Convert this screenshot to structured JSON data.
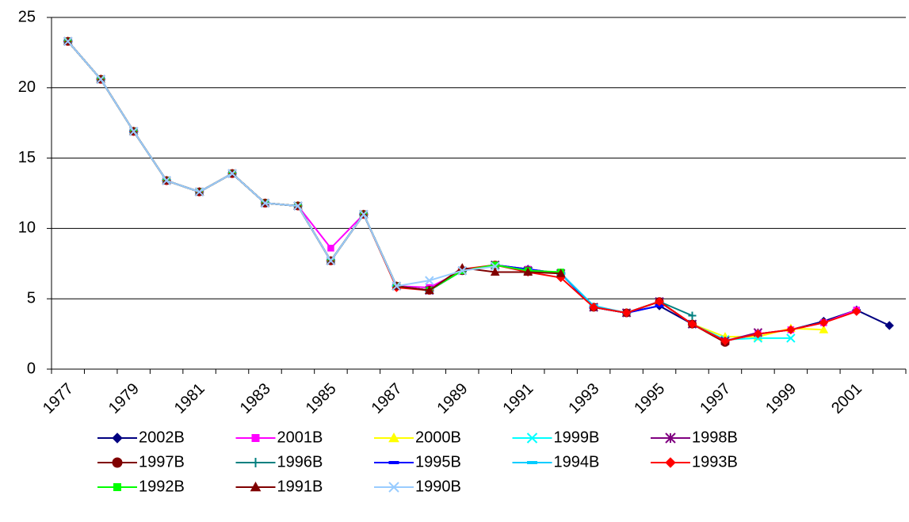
{
  "chart_data": {
    "type": "line",
    "categories": [
      "1977",
      null,
      "1979",
      null,
      "1981",
      null,
      "1983",
      null,
      "1985",
      null,
      "1987",
      null,
      "1989",
      null,
      "1991",
      null,
      "1993",
      null,
      "1995",
      null,
      "1997",
      null,
      "1999",
      null,
      "2001",
      null
    ],
    "ylim": [
      0,
      25
    ],
    "yticks": [
      0,
      5,
      10,
      15,
      20,
      25
    ],
    "grid": true,
    "series": [
      {
        "name": "2002B",
        "color": "#000080",
        "marker": "diamond",
        "values": [
          23.3,
          20.6,
          16.9,
          13.4,
          12.6,
          13.9,
          11.8,
          11.6,
          7.7,
          11.0,
          5.9,
          5.6,
          7.0,
          7.4,
          7.1,
          6.8,
          4.4,
          4.0,
          4.5,
          3.2,
          2.0,
          2.5,
          2.8,
          3.4,
          4.2,
          3.1
        ]
      },
      {
        "name": "2001B",
        "color": "#ff00ff",
        "marker": "square",
        "values": [
          23.3,
          20.6,
          16.9,
          13.4,
          12.6,
          13.9,
          11.8,
          11.6,
          8.6,
          11.0,
          5.9,
          5.8,
          7.0,
          7.4,
          7.1,
          6.8,
          4.4,
          4.0,
          4.8,
          3.2,
          2.0,
          2.5,
          2.8,
          3.3,
          4.2,
          null
        ]
      },
      {
        "name": "2000B",
        "color": "#ffff00",
        "marker": "triangle",
        "values": [
          23.3,
          20.6,
          16.9,
          13.4,
          12.6,
          13.9,
          11.8,
          11.6,
          7.7,
          11.0,
          5.9,
          5.6,
          7.0,
          7.4,
          7.0,
          6.8,
          4.4,
          4.0,
          4.8,
          3.2,
          2.3,
          2.3,
          2.9,
          2.8,
          null,
          null
        ]
      },
      {
        "name": "1999B",
        "color": "#00ffff",
        "marker": "x",
        "values": [
          23.3,
          20.6,
          16.9,
          13.4,
          12.6,
          13.9,
          11.8,
          11.6,
          7.7,
          11.0,
          5.9,
          5.6,
          7.0,
          7.4,
          7.0,
          6.8,
          4.4,
          4.0,
          4.8,
          3.2,
          2.1,
          2.2,
          2.2,
          null,
          null,
          null
        ]
      },
      {
        "name": "1998B",
        "color": "#800080",
        "marker": "star",
        "values": [
          23.3,
          20.6,
          16.9,
          13.4,
          12.6,
          13.9,
          11.8,
          11.6,
          7.7,
          11.0,
          5.9,
          5.6,
          7.0,
          7.4,
          7.0,
          6.8,
          4.4,
          4.0,
          4.8,
          3.2,
          2.0,
          2.6,
          null,
          null,
          null,
          null
        ]
      },
      {
        "name": "1997B",
        "color": "#800000",
        "marker": "circle",
        "values": [
          23.3,
          20.6,
          16.9,
          13.4,
          12.6,
          13.9,
          11.8,
          11.6,
          7.7,
          11.0,
          5.9,
          5.6,
          7.0,
          7.4,
          7.0,
          6.8,
          4.4,
          4.0,
          4.8,
          3.2,
          1.9,
          null,
          null,
          null,
          null,
          null
        ]
      },
      {
        "name": "1996B",
        "color": "#008080",
        "marker": "plus",
        "values": [
          23.3,
          20.6,
          16.9,
          13.4,
          12.6,
          13.9,
          11.8,
          11.6,
          7.7,
          11.0,
          5.9,
          5.6,
          7.0,
          7.4,
          7.0,
          6.8,
          4.4,
          4.0,
          4.8,
          3.8,
          null,
          null,
          null,
          null,
          null,
          null
        ]
      },
      {
        "name": "1995B",
        "color": "#0000ff",
        "marker": "dash",
        "values": [
          23.3,
          20.6,
          16.9,
          13.4,
          12.6,
          13.9,
          11.8,
          11.6,
          7.7,
          11.0,
          5.9,
          5.6,
          7.0,
          7.4,
          7.1,
          6.8,
          4.4,
          4.0,
          4.5,
          null,
          null,
          null,
          null,
          null,
          null,
          null
        ]
      },
      {
        "name": "1994B",
        "color": "#00ccff",
        "marker": "dash",
        "values": [
          23.3,
          20.6,
          16.9,
          13.4,
          12.6,
          13.9,
          11.8,
          11.6,
          7.7,
          11.0,
          5.9,
          5.6,
          7.0,
          7.4,
          7.0,
          6.8,
          4.5,
          4.0,
          null,
          null,
          null,
          null,
          null,
          null,
          null,
          null
        ]
      },
      {
        "name": "1993B",
        "color": "#ff0000",
        "marker": "diamond",
        "values": [
          23.3,
          20.6,
          16.9,
          13.4,
          12.6,
          13.9,
          11.8,
          11.6,
          7.7,
          11.0,
          5.8,
          5.6,
          7.1,
          7.4,
          6.9,
          6.5,
          4.4,
          4.0,
          4.8,
          3.2,
          2.0,
          2.5,
          2.8,
          3.3,
          4.1,
          null
        ]
      },
      {
        "name": "1992B",
        "color": "#00ff00",
        "marker": "square",
        "values": [
          23.3,
          20.6,
          16.9,
          13.4,
          12.6,
          13.9,
          11.8,
          11.6,
          7.7,
          11.0,
          5.9,
          5.6,
          7.0,
          7.4,
          7.0,
          6.9,
          null,
          null,
          null,
          null,
          null,
          null,
          null,
          null,
          null,
          null
        ]
      },
      {
        "name": "1991B",
        "color": "#800000",
        "marker": "triangle",
        "values": [
          23.3,
          20.6,
          16.9,
          13.4,
          12.6,
          13.9,
          11.8,
          11.6,
          7.7,
          11.0,
          5.9,
          5.6,
          7.2,
          6.9,
          6.9,
          6.8,
          null,
          null,
          null,
          null,
          null,
          null,
          null,
          null,
          null,
          null
        ]
      },
      {
        "name": "1990B",
        "color": "#99ccff",
        "marker": "x",
        "values": [
          23.3,
          20.6,
          16.9,
          13.4,
          12.6,
          13.9,
          11.8,
          11.6,
          7.7,
          11.0,
          5.9,
          6.3,
          7.0,
          7.3,
          null,
          null,
          null,
          null,
          null,
          null,
          null,
          null,
          null,
          null,
          null,
          null
        ]
      }
    ]
  }
}
